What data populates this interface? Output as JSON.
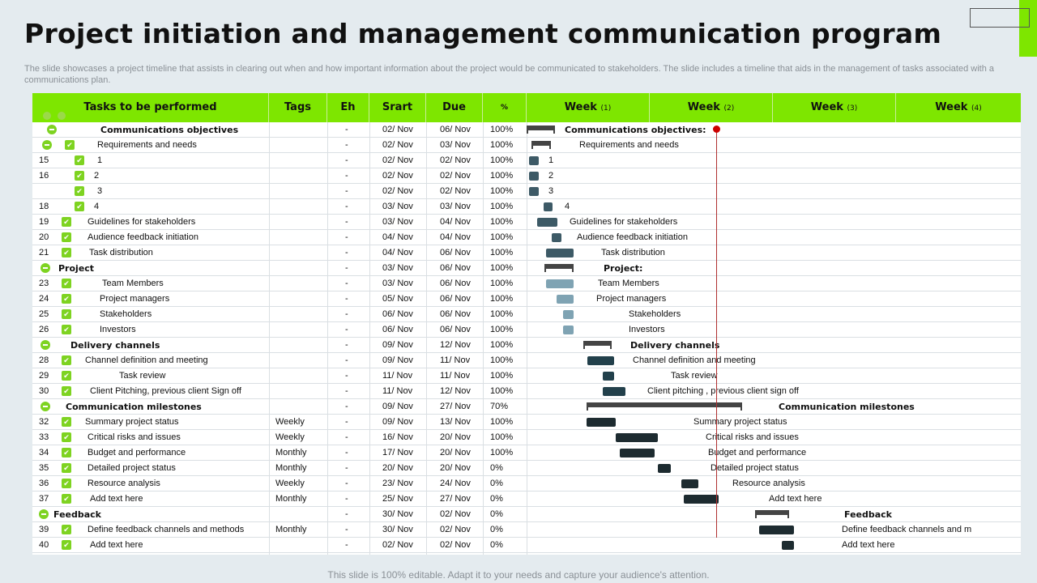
{
  "title": "Project initiation and management communication program",
  "subtitle": "The slide showcases a project timeline that assists in clearing out when and how important information about the project would be communicated to stakeholders. The slide includes a timeline that aids in the management of tasks associated with a communications plan.",
  "footer": "This slide is 100% editable. Adapt it to your needs and capture your audience's attention.",
  "colors": {
    "header_green": "#7ee600",
    "check_green": "#7ed321",
    "today_line": "#b03030"
  },
  "columns": {
    "tasks": "Tasks to be performed",
    "tags": "Tags",
    "eh": "Eh",
    "start": "Srart",
    "due": "Due",
    "pct": "%",
    "weeks": [
      {
        "label": "Week",
        "num": "(1)"
      },
      {
        "label": "Week",
        "num": "(2)"
      },
      {
        "label": "Week",
        "num": "(3)"
      },
      {
        "label": "Week",
        "num": "(4)"
      }
    ]
  },
  "rows": [
    {
      "id": "",
      "name": "Communications objectives",
      "level": 0,
      "group": true,
      "tags": "",
      "eh": "-",
      "start": "02/ Nov",
      "due": "06/ Nov",
      "pct": "100%",
      "gantt": "Communications objectives:"
    },
    {
      "id": "",
      "name": "Requirements and needs",
      "level": 1,
      "group": true,
      "tags": "",
      "eh": "-",
      "start": "02/ Nov",
      "due": "03/ Nov",
      "pct": "100%",
      "gantt": "Requirements and needs"
    },
    {
      "id": "15",
      "name": "1",
      "level": 2,
      "tags": "",
      "eh": "-",
      "start": "02/ Nov",
      "due": "02/ Nov",
      "pct": "100%",
      "gantt": "1"
    },
    {
      "id": "16",
      "name": "2",
      "level": 2,
      "tags": "",
      "eh": "-",
      "start": "02/ Nov",
      "due": "02/ Nov",
      "pct": "100%",
      "gantt": "2"
    },
    {
      "id": "",
      "name": "3",
      "level": 2,
      "tags": "",
      "eh": "-",
      "start": "02/ Nov",
      "due": "02/ Nov",
      "pct": "100%",
      "gantt": "3"
    },
    {
      "id": "18",
      "name": "4",
      "level": 2,
      "tags": "",
      "eh": "-",
      "start": "03/ Nov",
      "due": "03/ Nov",
      "pct": "100%",
      "gantt": "4"
    },
    {
      "id": "19",
      "name": "Guidelines  for stakeholders",
      "level": 1,
      "tags": "",
      "eh": "-",
      "start": "03/ Nov",
      "due": "04/ Nov",
      "pct": "100%",
      "gantt": "Guidelines  for stakeholders"
    },
    {
      "id": "20",
      "name": "Audience feedback initiation",
      "level": 1,
      "tags": "",
      "eh": "-",
      "start": "04/ Nov",
      "due": "04/ Nov",
      "pct": "100%",
      "gantt": "Audience feedback initiation"
    },
    {
      "id": "21",
      "name": "Task distribution",
      "level": 1,
      "tags": "",
      "eh": "-",
      "start": "04/ Nov",
      "due": "06/ Nov",
      "pct": "100%",
      "gantt": "Task distribution"
    },
    {
      "id": "",
      "name": "Project",
      "level": 0,
      "group": true,
      "tags": "",
      "eh": "-",
      "start": "03/ Nov",
      "due": "06/ Nov",
      "pct": "100%",
      "gantt": "Project:"
    },
    {
      "id": "23",
      "name": "Team Members",
      "level": 1,
      "tags": "",
      "eh": "-",
      "start": "03/ Nov",
      "due": "06/ Nov",
      "pct": "100%",
      "gantt": "Team Members"
    },
    {
      "id": "24",
      "name": "Project managers",
      "level": 1,
      "tags": "",
      "eh": "-",
      "start": "05/ Nov",
      "due": "06/ Nov",
      "pct": "100%",
      "gantt": "Project managers"
    },
    {
      "id": "25",
      "name": "Stakeholders",
      "level": 1,
      "tags": "",
      "eh": "-",
      "start": "06/ Nov",
      "due": "06/ Nov",
      "pct": "100%",
      "gantt": "Stakeholders"
    },
    {
      "id": "26",
      "name": "Investors",
      "level": 1,
      "tags": "",
      "eh": "-",
      "start": "06/ Nov",
      "due": "06/ Nov",
      "pct": "100%",
      "gantt": "Investors"
    },
    {
      "id": "",
      "name": "Delivery channels",
      "level": 0,
      "group": true,
      "tags": "",
      "eh": "-",
      "start": "09/ Nov",
      "due": "12/ Nov",
      "pct": "100%",
      "gantt": "Delivery channels"
    },
    {
      "id": "28",
      "name": "Channel definition and meeting",
      "level": 1,
      "tags": "",
      "eh": "-",
      "start": "09/ Nov",
      "due": "11/ Nov",
      "pct": "100%",
      "gantt": "Channel definition and meeting"
    },
    {
      "id": "29",
      "name": "Task review",
      "level": 1,
      "tags": "",
      "eh": "-",
      "start": "11/ Nov",
      "due": "11/ Nov",
      "pct": "100%",
      "gantt": "Task review"
    },
    {
      "id": "30",
      "name": "Client Pitching, previous client Sign off",
      "level": 1,
      "tags": "",
      "eh": "-",
      "start": "11/ Nov",
      "due": "12/ Nov",
      "pct": "100%",
      "gantt": "Client pitching , previous client sign off"
    },
    {
      "id": "",
      "name": "Communication milestones",
      "level": 0,
      "group": true,
      "tags": "",
      "eh": "-",
      "start": "09/ Nov",
      "due": "27/ Nov",
      "pct": "70%",
      "gantt": "Communication milestones"
    },
    {
      "id": "32",
      "name": "Summary project status",
      "level": 1,
      "tags": "Weekly",
      "eh": "-",
      "start": "09/ Nov",
      "due": "13/ Nov",
      "pct": "100%",
      "gantt": "Summary project status"
    },
    {
      "id": "33",
      "name": "Critical risks and issues",
      "level": 1,
      "tags": "Weekly",
      "eh": "-",
      "start": "16/ Nov",
      "due": "20/ Nov",
      "pct": "100%",
      "gantt": "Critical risks and issues"
    },
    {
      "id": "34",
      "name": "Budget and performance",
      "level": 1,
      "tags": "Monthly",
      "eh": "-",
      "start": "17/ Nov",
      "due": "20/ Nov",
      "pct": "100%",
      "gantt": "Budget and performance"
    },
    {
      "id": "35",
      "name": "Detailed project status",
      "level": 1,
      "tags": "Monthly",
      "eh": "-",
      "start": "20/ Nov",
      "due": "20/ Nov",
      "pct": "0%",
      "gantt": "Detailed project status"
    },
    {
      "id": "36",
      "name": "Resource analysis",
      "level": 1,
      "tags": "Weekly",
      "eh": "-",
      "start": "23/ Nov",
      "due": "24/ Nov",
      "pct": "0%",
      "gantt": "Resource analysis"
    },
    {
      "id": "37",
      "name": "Add text here",
      "level": 1,
      "tags": "Monthly",
      "eh": "-",
      "start": "25/ Nov",
      "due": "27/ Nov",
      "pct": "0%",
      "gantt": "Add text here"
    },
    {
      "id": "",
      "name": "Feedback",
      "level": 0,
      "group": true,
      "tags": "",
      "eh": "-",
      "start": "30/ Nov",
      "due": "02/ Nov",
      "pct": "0%",
      "gantt": "Feedback"
    },
    {
      "id": "39",
      "name": "Define feedback channels and methods",
      "level": 1,
      "tags": "Monthly",
      "eh": "-",
      "start": "30/ Nov",
      "due": "02/ Nov",
      "pct": "0%",
      "gantt": "Define feedback channels and m"
    },
    {
      "id": "40",
      "name": "Add text here",
      "level": 1,
      "tags": "",
      "eh": "-",
      "start": "02/ Nov",
      "due": "02/ Nov",
      "pct": "0%",
      "gantt": "Add text here"
    }
  ]
}
